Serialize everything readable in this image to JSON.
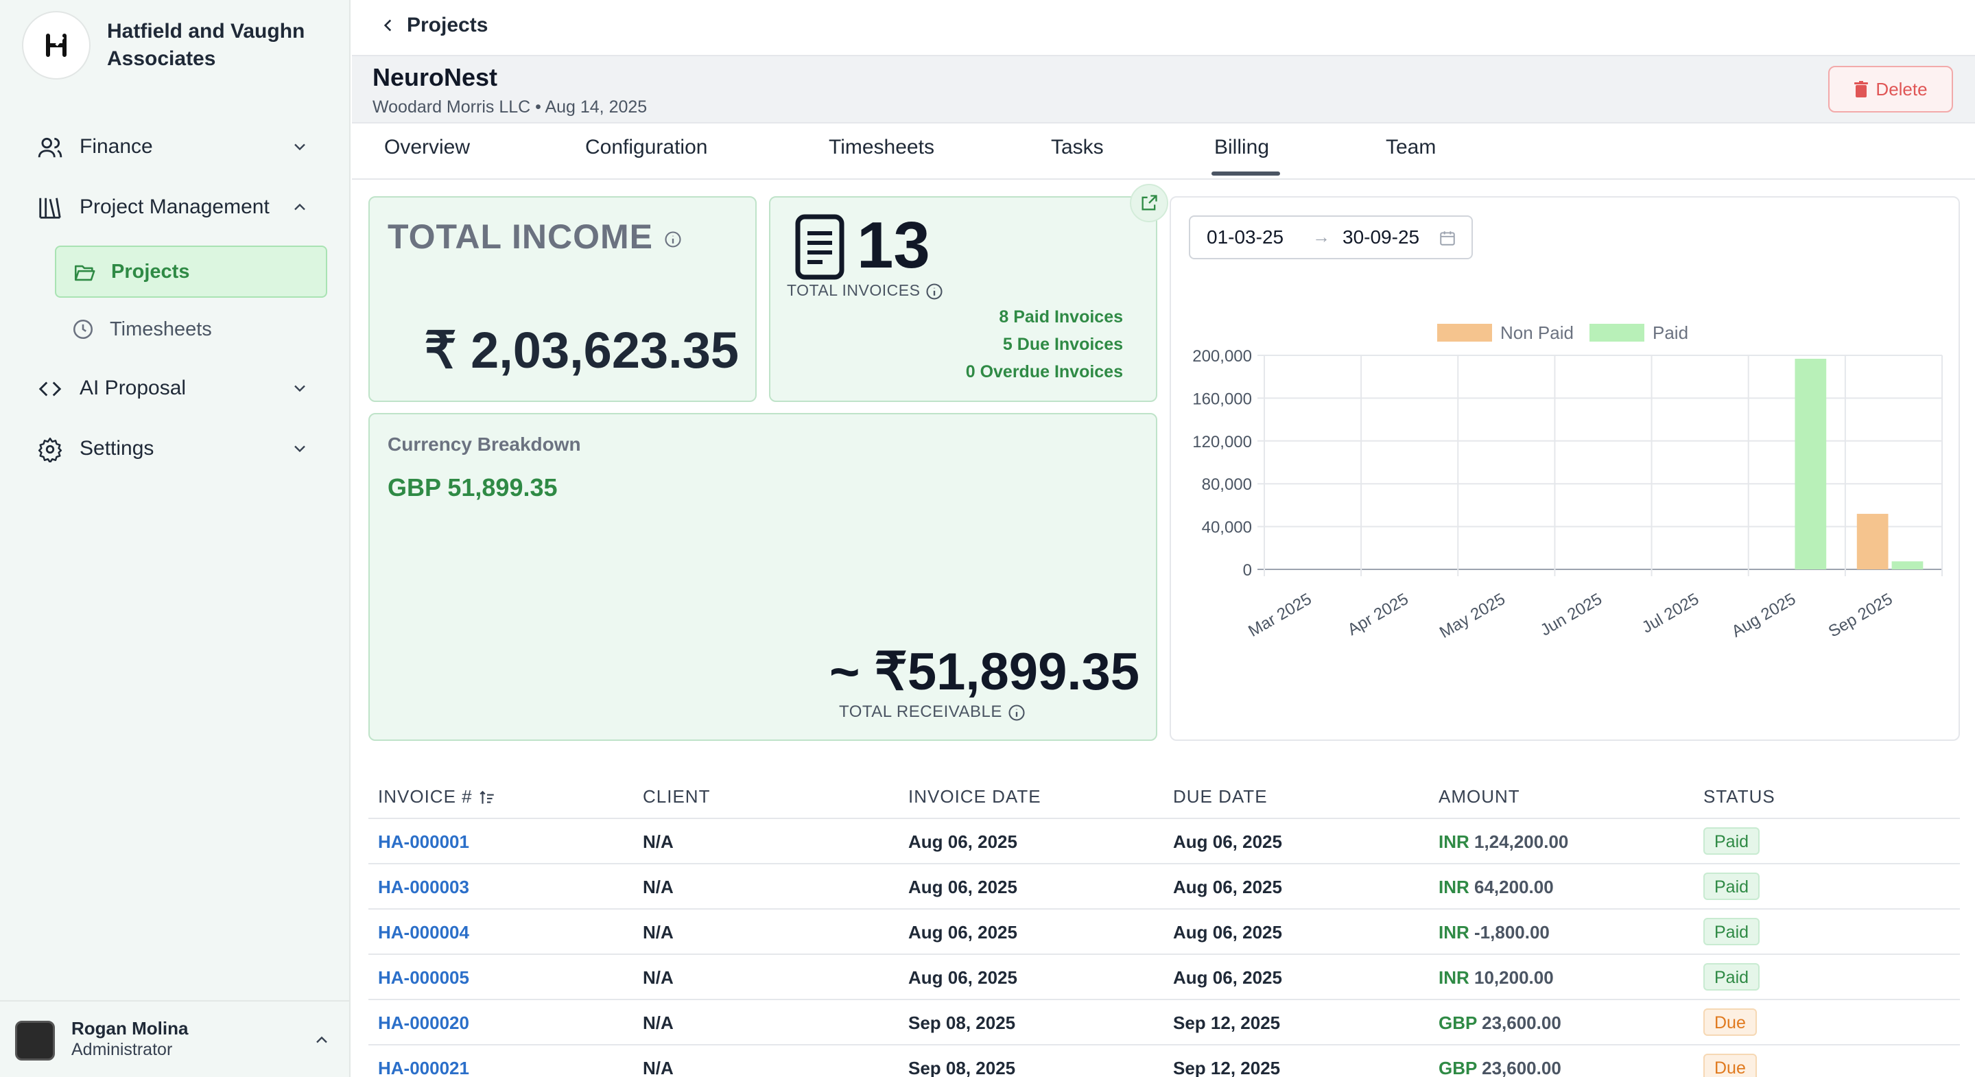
{
  "brand": {
    "name": "Hatfield and Vaughn Associates",
    "logo_letter": "H"
  },
  "sidebar": {
    "items": [
      {
        "label": "Finance",
        "icon": "users-icon",
        "chevron": "down"
      },
      {
        "label": "Project Management",
        "icon": "library-icon",
        "chevron": "up"
      },
      {
        "label": "AI Proposal",
        "icon": "code-icon",
        "chevron": "down"
      },
      {
        "label": "Settings",
        "icon": "gear-icon",
        "chevron": "down"
      }
    ],
    "sub_items": [
      {
        "label": "Projects",
        "icon": "folder-open-icon",
        "active": true
      },
      {
        "label": "Timesheets",
        "icon": "clock-icon",
        "active": false
      }
    ]
  },
  "user": {
    "name": "Rogan Molina",
    "role": "Administrator"
  },
  "topbar": {
    "back_label": "Projects"
  },
  "project": {
    "title": "NeuroNest",
    "subtitle": "Woodard Morris LLC • Aug 14, 2025",
    "delete_label": "Delete"
  },
  "tabs": [
    {
      "label": "Overview",
      "active": false
    },
    {
      "label": "Configuration",
      "active": false
    },
    {
      "label": "Timesheets",
      "active": false
    },
    {
      "label": "Tasks",
      "active": false
    },
    {
      "label": "Billing",
      "active": true
    },
    {
      "label": "Team",
      "active": false
    }
  ],
  "income": {
    "title": "TOTAL INCOME",
    "value": "₹ 2,03,623.35"
  },
  "invoices": {
    "count": "13",
    "label": "TOTAL INVOICES",
    "paid": "8 Paid Invoices",
    "due": "5 Due Invoices",
    "overdue": "0 Overdue Invoices"
  },
  "currency": {
    "title": "Currency Breakdown",
    "gbp": "GBP 51,899.35",
    "receivable_value": "~ ₹51,899.35",
    "receivable_label": "TOTAL RECEIVABLE"
  },
  "date_range": {
    "start": "01-03-25",
    "arrow": "→",
    "end": "30-09-25"
  },
  "chart_data": {
    "type": "bar",
    "categories": [
      "Mar 2025",
      "Apr 2025",
      "May 2025",
      "Jun 2025",
      "Jul 2025",
      "Aug 2025",
      "Sep 2025"
    ],
    "series": [
      {
        "name": "Non Paid",
        "color": "#f5c48e",
        "values": [
          0,
          0,
          0,
          0,
          0,
          0,
          51899.35
        ]
      },
      {
        "name": "Paid",
        "color": "#b8f0b8",
        "values": [
          0,
          0,
          0,
          0,
          0,
          196800,
          7500
        ]
      }
    ],
    "ylim": [
      0,
      200000
    ],
    "yticks": [
      "200,000",
      "160,000",
      "120,000",
      "80,000",
      "40,000",
      "0"
    ],
    "ytick_values": [
      200000,
      160000,
      120000,
      80000,
      40000,
      0
    ],
    "legend": "top-center",
    "grid": true
  },
  "table": {
    "headers": [
      "INVOICE #",
      "CLIENT",
      "INVOICE DATE",
      "DUE DATE",
      "AMOUNT",
      "STATUS"
    ],
    "rows": [
      {
        "invoice": "HA-000001",
        "client": "N/A",
        "invoice_date": "Aug 06, 2025",
        "due_date": "Aug 06, 2025",
        "currency": "INR",
        "amount": "1,24,200.00",
        "status": "Paid"
      },
      {
        "invoice": "HA-000003",
        "client": "N/A",
        "invoice_date": "Aug 06, 2025",
        "due_date": "Aug 06, 2025",
        "currency": "INR",
        "amount": "64,200.00",
        "status": "Paid"
      },
      {
        "invoice": "HA-000004",
        "client": "N/A",
        "invoice_date": "Aug 06, 2025",
        "due_date": "Aug 06, 2025",
        "currency": "INR",
        "amount": "-1,800.00",
        "status": "Paid"
      },
      {
        "invoice": "HA-000005",
        "client": "N/A",
        "invoice_date": "Aug 06, 2025",
        "due_date": "Aug 06, 2025",
        "currency": "INR",
        "amount": "10,200.00",
        "status": "Paid"
      },
      {
        "invoice": "HA-000020",
        "client": "N/A",
        "invoice_date": "Sep 08, 2025",
        "due_date": "Sep 12, 2025",
        "currency": "GBP",
        "amount": "23,600.00",
        "status": "Due"
      },
      {
        "invoice": "HA-000021",
        "client": "N/A",
        "invoice_date": "Sep 08, 2025",
        "due_date": "Sep 12, 2025",
        "currency": "GBP",
        "amount": "23,600.00",
        "status": "Due"
      }
    ]
  }
}
